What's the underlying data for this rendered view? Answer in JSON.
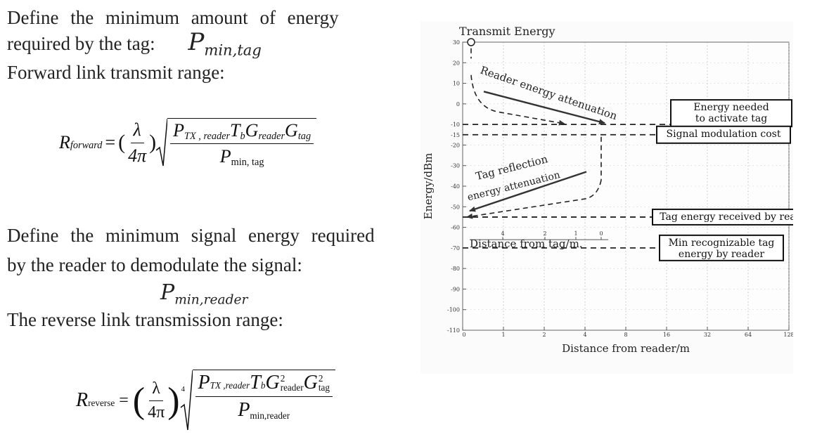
{
  "text": {
    "intro_line1": "Define the minimum amount of energy",
    "intro_line2": "required by the tag:",
    "pmin_tag": {
      "base": "P",
      "sub": "min,tag"
    },
    "forward_label": "Forward link transmit range:",
    "reader_line1": "Define the minimum signal energy required",
    "reader_line2": "by the reader to demodulate the signal:",
    "pmin_reader": {
      "base": "P",
      "sub": "min,reader"
    },
    "reverse_label": "The reverse link transmission range:"
  },
  "formula_forward": {
    "lhs": "R",
    "lhs_sub": "forward",
    "equals": "=",
    "lambda": "λ",
    "four_pi": "4π",
    "num": {
      "p": "P",
      "p_sub": "TX , reader",
      "t": "T",
      "t_sub": "b",
      "g1": "G",
      "g1_sub": "reader",
      "g2": "G",
      "g2_sub": "tag"
    },
    "den": {
      "p": "P",
      "p_sub": "min, tag"
    }
  },
  "formula_reverse": {
    "lhs": "R",
    "lhs_sub": "reverse",
    "equals": "=",
    "lambda": "λ",
    "four_pi": "4π",
    "root_index": "4",
    "num": {
      "p": "P",
      "p_sub": "TX ,reader",
      "t": "T",
      "t_sub": "b",
      "g1": "G",
      "g1_sub": "reader",
      "g1_sup": "2",
      "g2": "G",
      "g2_sub": "tag",
      "g2_sup": "2"
    },
    "den": {
      "p": "P",
      "p_sub": "min,reader"
    }
  },
  "chart_data": {
    "type": "line",
    "title": "Transmit Energy",
    "xlabel": "Distance from reader/m",
    "ylabel": "Energy/dBm",
    "x_scale": "log2",
    "x_ticks": [
      0,
      1,
      2,
      4,
      8,
      16,
      32,
      64,
      128
    ],
    "y_ticks": [
      30,
      20,
      10,
      0,
      -10,
      -15,
      -20,
      -30,
      -40,
      -50,
      -60,
      -70,
      -80,
      -90,
      -100,
      -110
    ],
    "ylim": [
      -110,
      30
    ],
    "secondary_axis": {
      "label": "Distance from tag/m.",
      "ticks": [
        "4",
        "2",
        "1",
        "0"
      ]
    },
    "levels": [
      {
        "label": "Energy needed to activate tag",
        "lines": [
          "Energy needed",
          "to activate tag"
        ],
        "y": -10
      },
      {
        "label": "Signal modulation cost",
        "lines": [
          "Signal modulation cost"
        ],
        "y": -15
      },
      {
        "label": "Tag energy received by reader",
        "lines": [
          "Tag energy received by reader"
        ],
        "y": -55
      },
      {
        "label": "Min recognizable tag energy by reader",
        "lines": [
          "Min recognizable tag",
          "energy by reader"
        ],
        "y": -70
      }
    ],
    "annotations": [
      "Reader energy attenuation",
      "Tag reflection energy attenuation"
    ],
    "annotation_lines": [
      [
        "Reader energy attenuation"
      ],
      [
        "Tag reflection",
        "energy attenuation"
      ]
    ],
    "grid": true
  }
}
